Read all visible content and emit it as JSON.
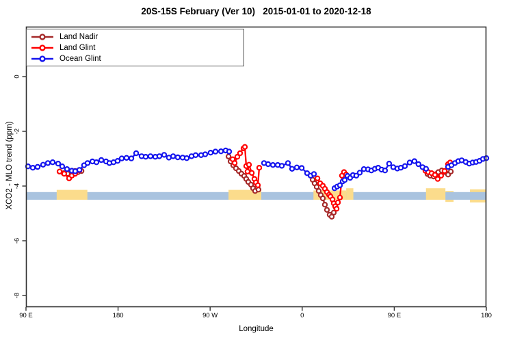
{
  "title": "20S-15S February (Ver 10)   2015-01-01 to 2020-12-18",
  "chart_data": {
    "type": "line",
    "title": "20S-15S February (Ver 10)   2015-01-01 to 2020-12-18",
    "xlabel": "Longitude",
    "ylabel": "XCO2 - MLO trend (ppm)",
    "x_axis": {
      "range": [
        90,
        540
      ],
      "note": "longitude axis wraps eastward from 90E through 180, 90W, 0, 90E to 180",
      "ticks": [
        {
          "u": 90,
          "label": "90 E"
        },
        {
          "u": 180,
          "label": "180"
        },
        {
          "u": 270,
          "label": "90 W"
        },
        {
          "u": 360,
          "label": "0"
        },
        {
          "u": 450,
          "label": "90 E"
        },
        {
          "u": 540,
          "label": "180"
        }
      ]
    },
    "y_axis": {
      "range": [
        -8.55,
        1.85
      ],
      "ticks": [
        {
          "v": 0,
          "label": "0"
        },
        {
          "v": -2,
          "label": "-2"
        },
        {
          "v": -4,
          "label": "-4"
        },
        {
          "v": -6,
          "label": "-6"
        },
        {
          "v": -8,
          "label": "-8"
        }
      ]
    },
    "legend": [
      {
        "name": "Land Nadir",
        "color": "#A52A2A"
      },
      {
        "name": "Land Glint",
        "color": "#FF0000"
      },
      {
        "name": "Ocean Glint",
        "color": "#1414EE"
      }
    ],
    "legend_position": "top-left",
    "grid": false,
    "box_color": "#2f2f2f",
    "bands": {
      "ocean_band": {
        "color": "#A9C3DF",
        "u0": 90,
        "u1": 540,
        "top": -4.22,
        "bottom": -4.5
      },
      "land_band_color": "#FBDC8C",
      "land_segments_under": [
        {
          "u0": 500,
          "u1": 508,
          "top": -4.18,
          "bottom": -4.58
        },
        {
          "u0": 524,
          "u1": 540,
          "top": -4.12,
          "bottom": -4.6
        }
      ],
      "land_segments_over": [
        {
          "u0": 120,
          "u1": 150,
          "top": -4.14,
          "bottom": -4.5
        },
        {
          "u0": 288,
          "u1": 320,
          "top": -4.14,
          "bottom": -4.5
        },
        {
          "u0": 371,
          "u1": 403,
          "top": -4.16,
          "bottom": -4.5
        },
        {
          "u0": 403,
          "u1": 410,
          "top": -4.08,
          "bottom": -4.5
        },
        {
          "u0": 481,
          "u1": 500,
          "top": -4.08,
          "bottom": -4.5
        }
      ]
    },
    "series": [
      {
        "name": "Land Nadir",
        "color": "#A52A2A",
        "segments": [
          [
            [
              122.8,
              -3.47
            ],
            [
              126.8,
              -3.53
            ],
            [
              130.8,
              -3.55
            ],
            [
              134.8,
              -3.55
            ],
            [
              138.1,
              -3.45
            ],
            [
              140.8,
              -3.49
            ],
            [
              144.2,
              -3.45
            ]
          ],
          [
            [
              288,
              -2.92
            ],
            [
              290,
              -3.1
            ],
            [
              292.6,
              -3.24
            ],
            [
              295.3,
              -3.35
            ],
            [
              298,
              -3.45
            ],
            [
              300.6,
              -3.55
            ],
            [
              303.3,
              -3.63
            ],
            [
              305.3,
              -3.74
            ],
            [
              307.3,
              -3.85
            ],
            [
              310,
              -3.95
            ],
            [
              312,
              -4.08
            ],
            [
              314,
              -4.18
            ],
            [
              316,
              -4.05
            ],
            [
              317.3,
              -4.13
            ]
          ],
          [
            [
              370.2,
              -3.77
            ],
            [
              372.2,
              -3.9
            ],
            [
              374.2,
              -4.03
            ],
            [
              376.2,
              -4.18
            ],
            [
              378.2,
              -4.33
            ],
            [
              380.2,
              -4.45
            ],
            [
              382.2,
              -4.68
            ],
            [
              384.2,
              -4.87
            ],
            [
              386.9,
              -5.05
            ],
            [
              388.9,
              -5.12
            ],
            [
              390.9,
              -4.97
            ],
            [
              392.9,
              -4.78
            ]
          ],
          [
            [
              482.5,
              -3.56
            ],
            [
              485.1,
              -3.62
            ],
            [
              488.5,
              -3.65
            ],
            [
              491.1,
              -3.56
            ],
            [
              493.1,
              -3.49
            ],
            [
              496.5,
              -3.43
            ],
            [
              499.8,
              -3.49
            ],
            [
              502.6,
              -3.58
            ],
            [
              505.3,
              -3.47
            ]
          ]
        ]
      },
      {
        "name": "Land Glint",
        "color": "#FF0000",
        "segments": [
          [
            [
              122.8,
              -3.47
            ],
            [
              127.4,
              -3.55
            ],
            [
              132.1,
              -3.72
            ],
            [
              134.8,
              -3.62
            ],
            [
              138.1,
              -3.55
            ],
            [
              142.2,
              -3.43
            ]
          ],
          [
            [
              292,
              -3.02
            ],
            [
              294,
              -3.16
            ],
            [
              296.6,
              -2.93
            ],
            [
              299.3,
              -2.8
            ],
            [
              302.6,
              -2.62
            ],
            [
              304,
              -2.57
            ],
            [
              305.3,
              -3.27
            ],
            [
              306.6,
              -3.47
            ],
            [
              308,
              -3.22
            ],
            [
              310.7,
              -3.52
            ],
            [
              313.3,
              -3.74
            ],
            [
              314.7,
              -3.87
            ],
            [
              316.7,
              -3.97
            ],
            [
              318,
              -3.33
            ]
          ],
          [
            [
              374.9,
              -3.72
            ],
            [
              377.6,
              -3.9
            ],
            [
              380.2,
              -3.99
            ],
            [
              382.2,
              -4.1
            ],
            [
              384.2,
              -4.22
            ],
            [
              386.2,
              -4.32
            ],
            [
              387.6,
              -4.38
            ],
            [
              389.6,
              -4.49
            ],
            [
              390.9,
              -4.63
            ],
            [
              392.2,
              -4.74
            ],
            [
              393.6,
              -4.83
            ],
            [
              394.9,
              -4.6
            ],
            [
              396.9,
              -4.42
            ],
            [
              398.9,
              -3.62
            ],
            [
              400.9,
              -3.49
            ],
            [
              402.9,
              -3.58
            ]
          ],
          [
            [
              480.5,
              -3.44
            ],
            [
              483.1,
              -3.49
            ],
            [
              486.5,
              -3.53
            ],
            [
              489.8,
              -3.59
            ],
            [
              492.5,
              -3.74
            ],
            [
              495.8,
              -3.62
            ],
            [
              499.2,
              -3.45
            ],
            [
              502.6,
              -3.2
            ],
            [
              504.6,
              -3.14
            ]
          ]
        ]
      },
      {
        "name": "Ocean Glint",
        "color": "#1414EE",
        "segments": [
          [
            [
              92,
              -3.28
            ],
            [
              96.7,
              -3.33
            ],
            [
              101.4,
              -3.3
            ],
            [
              106.7,
              -3.22
            ],
            [
              111.4,
              -3.16
            ],
            [
              116.1,
              -3.13
            ],
            [
              121.4,
              -3.18
            ],
            [
              125.4,
              -3.28
            ],
            [
              130.1,
              -3.38
            ],
            [
              134.8,
              -3.44
            ],
            [
              138.1,
              -3.46
            ],
            [
              142.2,
              -3.41
            ],
            [
              146.8,
              -3.24
            ],
            [
              150.2,
              -3.16
            ],
            [
              154.9,
              -3.1
            ],
            [
              158.9,
              -3.13
            ],
            [
              163.6,
              -3.05
            ],
            [
              168.2,
              -3.1
            ],
            [
              171.6,
              -3.16
            ],
            [
              175.6,
              -3.13
            ],
            [
              179.6,
              -3.08
            ],
            [
              183.6,
              -2.99
            ],
            [
              188.3,
              -2.97
            ],
            [
              193,
              -2.99
            ],
            [
              197.7,
              -2.8
            ],
            [
              203,
              -2.91
            ],
            [
              207,
              -2.93
            ],
            [
              211.7,
              -2.91
            ],
            [
              216.4,
              -2.93
            ],
            [
              220.4,
              -2.91
            ],
            [
              225.1,
              -2.86
            ],
            [
              229.7,
              -2.96
            ],
            [
              233.8,
              -2.91
            ],
            [
              238.4,
              -2.95
            ],
            [
              243.1,
              -2.96
            ],
            [
              247.1,
              -2.98
            ],
            [
              251.8,
              -2.91
            ],
            [
              255.8,
              -2.87
            ],
            [
              261.2,
              -2.87
            ],
            [
              265.2,
              -2.84
            ],
            [
              270.5,
              -2.78
            ],
            [
              275.2,
              -2.74
            ],
            [
              280.6,
              -2.73
            ],
            [
              285.2,
              -2.7
            ],
            [
              288.6,
              -2.74
            ]
          ],
          [
            [
              322.7,
              -3.16
            ],
            [
              326.7,
              -3.2
            ],
            [
              331.4,
              -3.23
            ],
            [
              336.1,
              -3.23
            ],
            [
              340.1,
              -3.26
            ],
            [
              346.1,
              -3.16
            ],
            [
              350.1,
              -3.37
            ],
            [
              354.8,
              -3.32
            ],
            [
              359.5,
              -3.34
            ],
            [
              364.8,
              -3.53
            ],
            [
              368.2,
              -3.62
            ],
            [
              371.5,
              -3.56
            ]
          ],
          [
            [
              391.6,
              -4.08
            ],
            [
              394.2,
              -4.02
            ],
            [
              396.9,
              -3.97
            ],
            [
              399.6,
              -3.83
            ],
            [
              401.6,
              -3.78
            ],
            [
              404.3,
              -3.63
            ],
            [
              406.9,
              -3.7
            ],
            [
              409.6,
              -3.6
            ],
            [
              412.9,
              -3.62
            ],
            [
              416.3,
              -3.51
            ],
            [
              420.3,
              -3.38
            ],
            [
              424.3,
              -3.39
            ],
            [
              427.6,
              -3.43
            ],
            [
              431,
              -3.37
            ],
            [
              434.3,
              -3.33
            ],
            [
              437.6,
              -3.4
            ],
            [
              441,
              -3.43
            ],
            [
              445,
              -3.18
            ],
            [
              449,
              -3.31
            ],
            [
              453,
              -3.36
            ],
            [
              456.4,
              -3.33
            ],
            [
              460.4,
              -3.27
            ],
            [
              465.1,
              -3.14
            ],
            [
              469.7,
              -3.09
            ],
            [
              473.7,
              -3.2
            ],
            [
              477.7,
              -3.31
            ],
            [
              481.1,
              -3.37
            ]
          ],
          [
            [
              502.6,
              -3.3
            ],
            [
              505.9,
              -3.24
            ],
            [
              509.3,
              -3.16
            ],
            [
              512.6,
              -3.09
            ],
            [
              515.9,
              -3.06
            ],
            [
              519.9,
              -3.12
            ],
            [
              523.3,
              -3.18
            ],
            [
              526.6,
              -3.14
            ],
            [
              530,
              -3.12
            ],
            [
              533.3,
              -3.08
            ],
            [
              536.7,
              -3.01
            ],
            [
              540,
              -2.98
            ]
          ]
        ]
      }
    ]
  }
}
